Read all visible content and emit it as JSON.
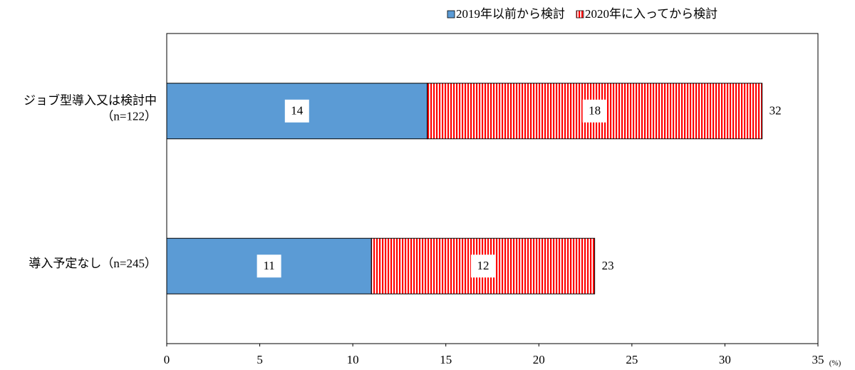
{
  "chart_data": {
    "type": "stacked-barh",
    "categories": [
      [
        "ジョブ型導入又は検討中",
        "（n=122）"
      ],
      [
        "導入予定なし（n=245）"
      ]
    ],
    "series": [
      {
        "name": "2019年以前から検討",
        "color": "#5b9bd5",
        "values": [
          14,
          11
        ]
      },
      {
        "name": "2020年に入ってから検討",
        "color": "#ff0000",
        "hatch": "vertical",
        "values": [
          18,
          12
        ]
      }
    ],
    "totals": [
      32,
      23
    ],
    "xlim": [
      0,
      35
    ],
    "xticks": [
      0,
      5,
      10,
      15,
      20,
      25,
      30,
      35
    ],
    "x_unit": "(%)",
    "legend": "top-right",
    "grid": false
  }
}
